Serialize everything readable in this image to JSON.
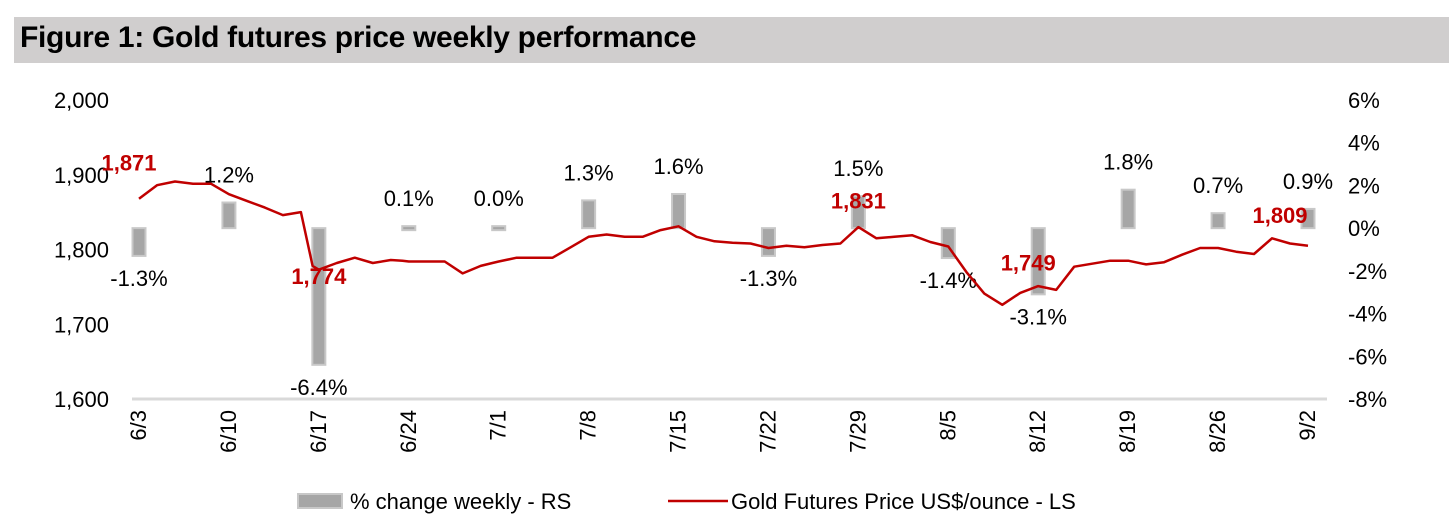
{
  "title": "Figure 1: Gold futures price weekly performance",
  "chart_data": {
    "type": "bar+line",
    "title": "Figure 1: Gold futures price weekly performance",
    "categories": [
      "6/3",
      "6/10",
      "6/17",
      "6/24",
      "7/1",
      "7/8",
      "7/15",
      "7/22",
      "7/29",
      "8/5",
      "8/12",
      "8/19",
      "8/26",
      "9/2"
    ],
    "left_axis": {
      "label": "Gold Futures Price US$/ounce",
      "ylim": [
        1600,
        2000
      ],
      "ticks": [
        1600,
        1700,
        1800,
        1900,
        2000
      ],
      "tick_labels": [
        "1,600",
        "1,700",
        "1,800",
        "1,900",
        "2,000"
      ]
    },
    "right_axis": {
      "label": "% change weekly",
      "ylim": [
        -8,
        6
      ],
      "ticks": [
        -8,
        -6,
        -4,
        -2,
        0,
        2,
        4,
        6
      ],
      "tick_labels": [
        "-8%",
        "-6%",
        "-4%",
        "-2%",
        "0%",
        "2%",
        "4%",
        "6%"
      ]
    },
    "series": [
      {
        "name": "% change weekly - RS",
        "type": "bar",
        "axis": "right",
        "color": "#a6a6a6",
        "values": [
          -1.3,
          1.2,
          -6.4,
          0.1,
          0.0,
          1.3,
          1.6,
          -1.3,
          1.5,
          -1.4,
          -3.1,
          1.8,
          0.7,
          0.9
        ],
        "labels": [
          "-1.3%",
          "1.2%",
          "-6.4%",
          "0.1%",
          "0.0%",
          "1.3%",
          "1.6%",
          "-1.3%",
          "1.5%",
          "-1.4%",
          "-3.1%",
          "1.8%",
          "0.7%",
          "0.9%"
        ]
      },
      {
        "name": "Gold Futures Price US$/ounce - LS",
        "type": "line",
        "axis": "left",
        "color": "#c00000",
        "daily_x": [
          0,
          0.2,
          0.4,
          0.6,
          0.8,
          1.0,
          1.2,
          1.4,
          1.6,
          1.8,
          1.93,
          2.0,
          2.2,
          2.4,
          2.6,
          2.8,
          2.93,
          3.0,
          3.2,
          3.4,
          3.6,
          3.8,
          3.93,
          4.0,
          4.2,
          4.4,
          4.6,
          4.8,
          5.0,
          5.2,
          5.4,
          5.6,
          5.8,
          6.0,
          6.2,
          6.4,
          6.6,
          6.8,
          7.0,
          7.2,
          7.4,
          7.6,
          7.8,
          8.0,
          8.2,
          8.4,
          8.6,
          8.8,
          9.0,
          9.2,
          9.4,
          9.6,
          9.8,
          10.0,
          10.2,
          10.4,
          10.6,
          10.8,
          11.0,
          11.2,
          11.4,
          11.6,
          11.8,
          12.0,
          12.2,
          12.4,
          12.6,
          12.8,
          13.0
        ],
        "daily_values": [
          1868,
          1886,
          1891,
          1888,
          1888,
          1874,
          1865,
          1856,
          1846,
          1850,
          1778,
          1773,
          1782,
          1789,
          1782,
          1786,
          1785,
          1784,
          1784,
          1784,
          1768,
          1778,
          1782,
          1784,
          1789,
          1789,
          1789,
          1803,
          1817,
          1820,
          1817,
          1817,
          1826,
          1831,
          1817,
          1811,
          1809,
          1808,
          1802,
          1805,
          1803,
          1806,
          1808,
          1830,
          1815,
          1817,
          1819,
          1810,
          1804,
          1770,
          1741,
          1726,
          1742,
          1751,
          1746,
          1777,
          1781,
          1785,
          1785,
          1780,
          1783,
          1793,
          1802,
          1802,
          1797,
          1794,
          1815,
          1808,
          1805
        ],
        "point_labels": [
          {
            "x": 0,
            "value": 1871,
            "text": "1,871"
          },
          {
            "x": 2,
            "value": 1774,
            "text": "1,774"
          },
          {
            "x": 8,
            "value": 1831,
            "text": "1,831"
          },
          {
            "x": 10,
            "value": 1749,
            "text": "1,749"
          },
          {
            "x": 13,
            "value": 1809,
            "text": "1,809"
          }
        ]
      }
    ],
    "legend": {
      "position": "bottom",
      "entries": [
        "% change weekly - RS",
        "Gold Futures Price US$/ounce - LS"
      ]
    },
    "grid": false
  }
}
